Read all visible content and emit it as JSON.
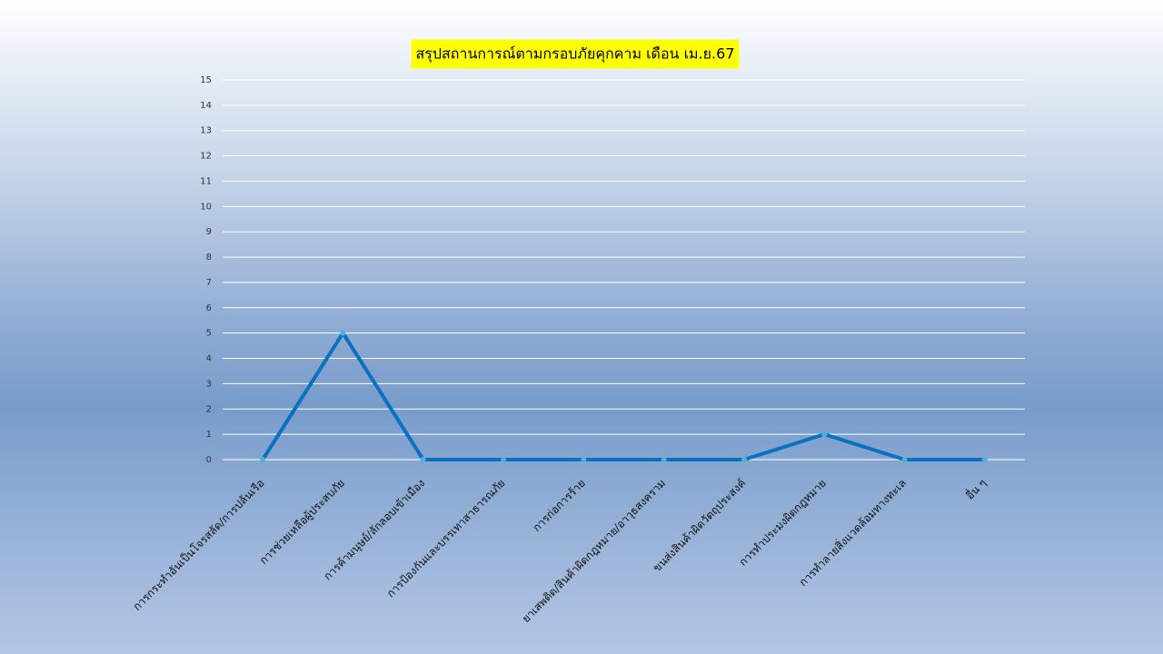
{
  "chart_data": {
    "type": "line",
    "title": "สรุปสถานการณ์ตามกรอบภัยคุกคาม เดือน เม.ย.67",
    "categories": [
      "การกระทำอันเป็นโจรสลัด/การปล้นเรือ",
      "การช่วยเหลือผู้ประสบภัย",
      "การค้ามนุษย์/ลักลอบเข้าเมือง",
      "การป้องกันและบรรเทาสาธารณภัย",
      "การก่อการร้าย",
      "ยาเสพติด/สินค้าผิดกฎหมาย/อาวุธสงคราม",
      "ขนส่งสินค้าผิดวัตถุประสงค์",
      "การทำประมงผิดกฎหมาย",
      "การทำลายสิ่งแวดล้อมทางทะเล",
      "อื่น ๆ"
    ],
    "values": [
      0,
      5,
      0,
      0,
      0,
      0,
      0,
      1,
      0,
      0
    ],
    "color": "#0a70c2",
    "ylim": [
      0,
      15
    ],
    "yticks": [
      0,
      1,
      2,
      3,
      4,
      5,
      6,
      7,
      8,
      9,
      10,
      11,
      12,
      13,
      14,
      15
    ],
    "grid": true
  }
}
